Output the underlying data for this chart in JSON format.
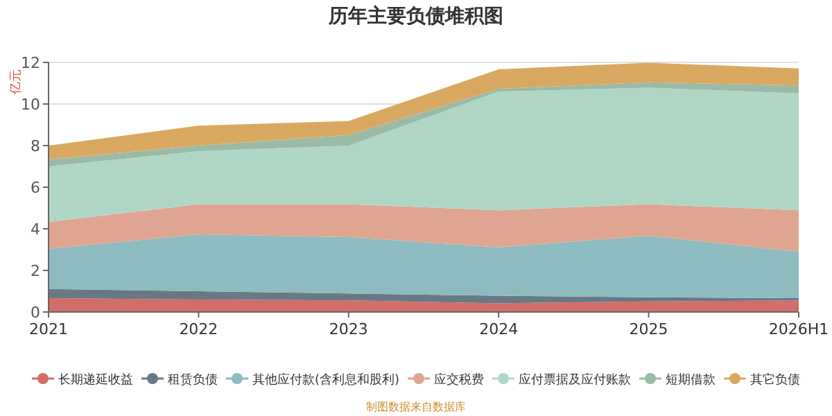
{
  "chart_data": {
    "type": "area",
    "stacked": true,
    "title": "历年主要负债堆积图",
    "ylabel": "亿元",
    "categories": [
      "2021",
      "2022",
      "2023",
      "2024",
      "2025",
      "2026H1"
    ],
    "ylim": [
      0,
      12
    ],
    "yticks": [
      0,
      2,
      4,
      6,
      8,
      10,
      12
    ],
    "grid": "y",
    "legend": "bottom",
    "annotations": [
      "制图数据来自数据库"
    ],
    "series": [
      {
        "name": "长期递延收益",
        "color": "#d36d6a",
        "values": [
          0.67,
          0.6,
          0.56,
          0.42,
          0.51,
          0.56
        ]
      },
      {
        "name": "租赁负债",
        "color": "#697984",
        "values": [
          0.44,
          0.4,
          0.33,
          0.36,
          0.2,
          0.11
        ]
      },
      {
        "name": "其他应付款(含利息和股利)",
        "color": "#8dbbc0",
        "values": [
          1.93,
          2.73,
          2.71,
          2.33,
          2.96,
          2.22
        ]
      },
      {
        "name": "应交税费",
        "color": "#e0a590",
        "values": [
          1.29,
          1.45,
          1.58,
          1.78,
          1.51,
          2.0
        ]
      },
      {
        "name": "应付票据及应付账款",
        "color": "#b0d7c5",
        "values": [
          2.67,
          2.55,
          2.82,
          5.71,
          5.6,
          5.62
        ]
      },
      {
        "name": "短期借款",
        "color": "#9bbaa6",
        "values": [
          0.33,
          0.27,
          0.51,
          0.13,
          0.26,
          0.38
        ]
      },
      {
        "name": "其它负债",
        "color": "#d9a860",
        "values": [
          0.67,
          0.96,
          0.67,
          0.94,
          0.94,
          0.82
        ]
      }
    ]
  }
}
